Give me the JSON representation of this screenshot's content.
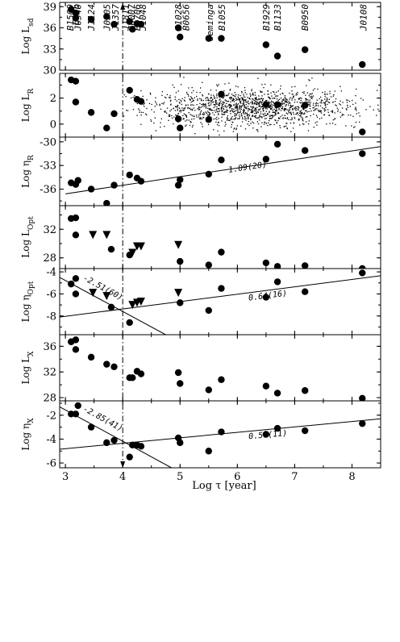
{
  "chart_data": {
    "type": "scatter",
    "xlabel": "Log τ  [year]",
    "xlim": [
      2.9,
      8.5
    ],
    "x_ticks": [
      "3",
      "4",
      "5",
      "6",
      "7",
      "8"
    ],
    "x_tick_values": [
      3,
      4,
      5,
      6,
      7,
      8
    ],
    "vline_x": 4.0,
    "panels": [
      {
        "id": "lsd",
        "ylabel": "Log L",
        "ylabel_sub": "sd",
        "ylim": [
          30,
          39.6
        ],
        "y_ticks": [
          "30",
          "33",
          "36",
          "39"
        ],
        "y_tick_values": [
          30,
          33,
          36,
          39
        ],
        "points": [
          {
            "x": 3.1,
            "y": 38.6
          },
          {
            "x": 3.18,
            "y": 38.1
          },
          {
            "x": 3.18,
            "y": 37.4
          },
          {
            "x": 3.45,
            "y": 37.2
          },
          {
            "x": 3.72,
            "y": 37.6
          },
          {
            "x": 3.85,
            "y": 36.5
          },
          {
            "x": 4.12,
            "y": 36.9
          },
          {
            "x": 4.17,
            "y": 35.8
          },
          {
            "x": 4.25,
            "y": 36.6
          },
          {
            "x": 4.32,
            "y": 36.5
          },
          {
            "x": 4.97,
            "y": 36.0
          },
          {
            "x": 5.0,
            "y": 34.7
          },
          {
            "x": 5.5,
            "y": 34.5
          },
          {
            "x": 5.72,
            "y": 34.5
          },
          {
            "x": 6.5,
            "y": 33.6
          },
          {
            "x": 6.7,
            "y": 32.0
          },
          {
            "x": 7.18,
            "y": 32.9
          },
          {
            "x": 8.18,
            "y": 30.8
          }
        ],
        "labels": [
          {
            "text": "B1509",
            "x": 3.08
          },
          {
            "text": "Crab",
            "x": 3.18
          },
          {
            "text": "J0540",
            "x": 3.22
          },
          {
            "text": "J1124",
            "x": 3.45
          },
          {
            "text": "J0205",
            "x": 3.72
          },
          {
            "text": "J1357",
            "x": 3.87
          },
          {
            "text": "J1811",
            "x": 4.05
          },
          {
            "text": "J0007",
            "x": 4.15
          },
          {
            "text": "B1706",
            "x": 4.25
          },
          {
            "text": "J1048",
            "x": 4.35
          },
          {
            "text": "J1028",
            "x": 4.97
          },
          {
            "text": "B0656",
            "x": 5.1
          },
          {
            "text": "Geminga",
            "x": 5.52
          },
          {
            "text": "B1055",
            "x": 5.73
          },
          {
            "text": "B1929",
            "x": 6.5
          },
          {
            "text": "B1133",
            "x": 6.7
          },
          {
            "text": "B0950",
            "x": 7.18
          },
          {
            "text": "J0108",
            "x": 8.2
          }
        ]
      },
      {
        "id": "lr",
        "ylabel": "Log L",
        "ylabel_sub": "R",
        "ylim": [
          -1.0,
          3.9
        ],
        "y_ticks": [
          "0",
          "2"
        ],
        "y_tick_values": [
          0,
          2
        ],
        "points": [
          {
            "x": 3.1,
            "y": 3.4
          },
          {
            "x": 3.18,
            "y": 3.3
          },
          {
            "x": 3.18,
            "y": 1.7
          },
          {
            "x": 3.45,
            "y": 0.9
          },
          {
            "x": 3.72,
            "y": -0.3
          },
          {
            "x": 3.85,
            "y": 0.8
          },
          {
            "x": 4.12,
            "y": 2.6
          },
          {
            "x": 4.25,
            "y": 1.9
          },
          {
            "x": 4.32,
            "y": 1.75
          },
          {
            "x": 4.97,
            "y": 0.4
          },
          {
            "x": 5.0,
            "y": -0.3
          },
          {
            "x": 5.5,
            "y": 0.35
          },
          {
            "x": 5.72,
            "y": 2.3
          },
          {
            "x": 6.5,
            "y": 1.5
          },
          {
            "x": 6.7,
            "y": 1.5
          },
          {
            "x": 7.18,
            "y": 1.45
          },
          {
            "x": 8.18,
            "y": -0.6
          }
        ],
        "background_cloud": {
          "count": 1400,
          "x_center": 6.2,
          "x_spread": 0.9,
          "y_center": 1.3,
          "y_spread": 0.7
        }
      },
      {
        "id": "etar",
        "ylabel": "Log η",
        "ylabel_sub": "R",
        "ylim": [
          -38.1,
          -29.4
        ],
        "y_ticks": [
          "-36",
          "-33",
          "-30"
        ],
        "y_tick_values": [
          -36,
          -33,
          -30
        ],
        "points": [
          {
            "x": 3.1,
            "y": -35.2
          },
          {
            "x": 3.18,
            "y": -35.4
          },
          {
            "x": 3.22,
            "y": -34.9
          },
          {
            "x": 3.45,
            "y": -36.0
          },
          {
            "x": 3.72,
            "y": -37.8
          },
          {
            "x": 3.85,
            "y": -35.5
          },
          {
            "x": 4.12,
            "y": -34.2
          },
          {
            "x": 4.25,
            "y": -34.6
          },
          {
            "x": 4.32,
            "y": -35.0
          },
          {
            "x": 4.97,
            "y": -35.5
          },
          {
            "x": 5.0,
            "y": -34.8
          },
          {
            "x": 5.5,
            "y": -34.1
          },
          {
            "x": 5.72,
            "y": -32.3
          },
          {
            "x": 6.5,
            "y": -32.2
          },
          {
            "x": 6.7,
            "y": -30.3
          },
          {
            "x": 7.18,
            "y": -31.1
          },
          {
            "x": 8.18,
            "y": -31.5
          }
        ],
        "fits": [
          {
            "x0": 3.0,
            "y0": -36.6,
            "x1": 8.5,
            "y1": -30.6,
            "label": "1.09(20)",
            "label_x": 5.85,
            "label_y": -33.9
          }
        ]
      },
      {
        "id": "lopt",
        "ylabel": "Log L",
        "ylabel_sub": "Opt",
        "ylim": [
          26.5,
          35.3
        ],
        "y_ticks": [
          "28",
          "32"
        ],
        "y_tick_values": [
          28,
          32
        ],
        "points": [
          {
            "x": 3.1,
            "y": 33.5
          },
          {
            "x": 3.18,
            "y": 33.6
          },
          {
            "x": 3.18,
            "y": 31.2
          },
          {
            "x": 3.8,
            "y": 29.2
          },
          {
            "x": 4.12,
            "y": 28.4
          },
          {
            "x": 5.0,
            "y": 27.5
          },
          {
            "x": 5.5,
            "y": 27.0
          },
          {
            "x": 5.72,
            "y": 28.8
          },
          {
            "x": 6.5,
            "y": 27.3
          },
          {
            "x": 6.7,
            "y": 26.8
          },
          {
            "x": 7.18,
            "y": 26.9
          },
          {
            "x": 8.18,
            "y": 26.5
          }
        ],
        "triangles": [
          {
            "x": 3.48,
            "y": 31.2
          },
          {
            "x": 3.72,
            "y": 31.2
          },
          {
            "x": 4.17,
            "y": 28.7
          },
          {
            "x": 4.25,
            "y": 29.6
          },
          {
            "x": 4.32,
            "y": 29.6
          },
          {
            "x": 4.97,
            "y": 29.8
          }
        ]
      },
      {
        "id": "etaopt",
        "ylabel": "Log η",
        "ylabel_sub": "Opt",
        "ylim": [
          -9.7,
          -3.7
        ],
        "y_ticks": [
          "-8",
          "-6",
          "-4"
        ],
        "y_tick_values": [
          -8,
          -6,
          -4
        ],
        "points": [
          {
            "x": 3.1,
            "y": -5.1
          },
          {
            "x": 3.18,
            "y": -4.6
          },
          {
            "x": 3.18,
            "y": -6.0
          },
          {
            "x": 3.8,
            "y": -7.2
          },
          {
            "x": 4.12,
            "y": -8.6
          },
          {
            "x": 5.0,
            "y": -6.8
          },
          {
            "x": 5.5,
            "y": -7.5
          },
          {
            "x": 5.72,
            "y": -5.5
          },
          {
            "x": 6.5,
            "y": -6.3
          },
          {
            "x": 6.7,
            "y": -4.9
          },
          {
            "x": 7.18,
            "y": -5.8
          },
          {
            "x": 8.18,
            "y": -4.1
          }
        ],
        "triangles": [
          {
            "x": 3.48,
            "y": -5.9
          },
          {
            "x": 3.72,
            "y": -6.2
          },
          {
            "x": 4.17,
            "y": -7.0
          },
          {
            "x": 4.25,
            "y": -6.8
          },
          {
            "x": 4.32,
            "y": -6.7
          },
          {
            "x": 4.97,
            "y": -5.9
          }
        ],
        "fits": [
          {
            "x0": 2.9,
            "y0": -8.1,
            "x1": 8.5,
            "y1": -4.35,
            "label": "0.64(16)",
            "label_x": 6.2,
            "label_y": -6.6
          },
          {
            "x0": 2.9,
            "y0": -4.5,
            "x1": 4.75,
            "y1": -9.7,
            "label": "-2.51(60)",
            "label_x": 3.3,
            "label_y": -4.7
          }
        ]
      },
      {
        "id": "lx",
        "ylabel": "Log L",
        "ylabel_sub": "X",
        "ylim": [
          27.5,
          37.8
        ],
        "y_ticks": [
          "28",
          "32",
          "36"
        ],
        "y_tick_values": [
          28,
          32,
          36
        ],
        "points": [
          {
            "x": 3.1,
            "y": 36.7
          },
          {
            "x": 3.18,
            "y": 37.0
          },
          {
            "x": 3.18,
            "y": 35.5
          },
          {
            "x": 3.45,
            "y": 34.3
          },
          {
            "x": 3.72,
            "y": 33.2
          },
          {
            "x": 3.85,
            "y": 32.8
          },
          {
            "x": 4.12,
            "y": 31.1
          },
          {
            "x": 4.17,
            "y": 31.1
          },
          {
            "x": 4.25,
            "y": 32.1
          },
          {
            "x": 4.32,
            "y": 31.7
          },
          {
            "x": 4.97,
            "y": 31.9
          },
          {
            "x": 5.0,
            "y": 30.2
          },
          {
            "x": 5.5,
            "y": 29.2
          },
          {
            "x": 5.72,
            "y": 30.8
          },
          {
            "x": 6.5,
            "y": 29.8
          },
          {
            "x": 6.7,
            "y": 28.7
          },
          {
            "x": 7.18,
            "y": 29.1
          },
          {
            "x": 8.18,
            "y": 27.9
          }
        ]
      },
      {
        "id": "etax",
        "ylabel": "Log η",
        "ylabel_sub": "X",
        "ylim": [
          -6.4,
          -0.8
        ],
        "y_ticks": [
          "-6",
          "-4",
          "-2"
        ],
        "y_tick_values": [
          -6,
          -4,
          -2
        ],
        "points": [
          {
            "x": 3.1,
            "y": -1.9
          },
          {
            "x": 3.18,
            "y": -1.9
          },
          {
            "x": 3.22,
            "y": -1.2
          },
          {
            "x": 3.45,
            "y": -3.0
          },
          {
            "x": 3.72,
            "y": -4.3
          },
          {
            "x": 3.85,
            "y": -4.1
          },
          {
            "x": 4.12,
            "y": -5.5
          },
          {
            "x": 4.17,
            "y": -4.5
          },
          {
            "x": 4.25,
            "y": -4.5
          },
          {
            "x": 4.32,
            "y": -4.6
          },
          {
            "x": 4.97,
            "y": -3.9
          },
          {
            "x": 5.0,
            "y": -4.3
          },
          {
            "x": 5.5,
            "y": -5.0
          },
          {
            "x": 5.72,
            "y": -3.4
          },
          {
            "x": 6.5,
            "y": -3.6
          },
          {
            "x": 6.7,
            "y": -3.1
          },
          {
            "x": 7.18,
            "y": -3.3
          },
          {
            "x": 8.18,
            "y": -2.7
          }
        ],
        "fits": [
          {
            "x0": 2.9,
            "y0": -4.85,
            "x1": 8.5,
            "y1": -2.3,
            "label": "0.50(11)",
            "label_x": 6.2,
            "label_y": -4.0
          },
          {
            "x0": 2.9,
            "y0": -1.3,
            "x1": 4.85,
            "y1": -6.4,
            "label": "-2.85(41)",
            "label_x": 3.3,
            "label_y": -1.6
          }
        ]
      }
    ]
  }
}
